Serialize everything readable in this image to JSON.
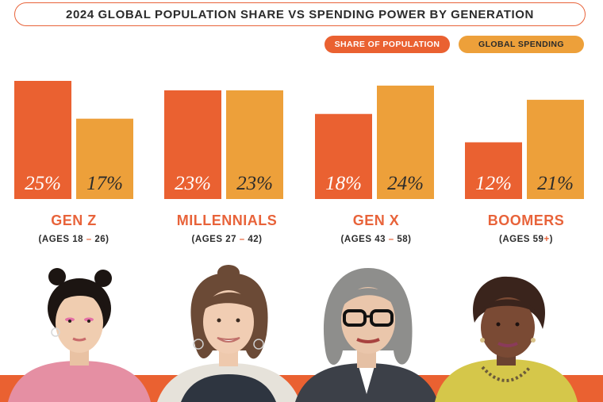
{
  "title": "2024 GLOBAL POPULATION SHARE VS SPENDING POWER BY GENERATION",
  "legend": {
    "population_label": "SHARE OF POPULATION",
    "spending_label": "GLOBAL SPENDING"
  },
  "colors": {
    "population": "#ea6131",
    "spending": "#eda03a",
    "accent": "#e8633a",
    "text": "#2b2b2b"
  },
  "generations": [
    {
      "name": "GEN Z",
      "ages": "(AGES 18 – 26)",
      "portrait_icon": "gen-z-portrait"
    },
    {
      "name": "MILLENNIALS",
      "ages": "(AGES 27 – 42)",
      "portrait_icon": "millennial-portrait"
    },
    {
      "name": "GEN X",
      "ages": "(AGES 43 – 58)",
      "portrait_icon": "gen-x-portrait"
    },
    {
      "name": "BOOMERS",
      "ages": "(AGES 59+)",
      "portrait_icon": "boomer-portrait"
    }
  ],
  "chart_data": {
    "type": "bar",
    "title": "2024 GLOBAL POPULATION SHARE VS SPENDING POWER BY GENERATION",
    "categories": [
      "GEN Z",
      "MILLENNIALS",
      "GEN X",
      "BOOMERS"
    ],
    "series": [
      {
        "name": "SHARE OF POPULATION",
        "values": [
          25,
          23,
          18,
          12
        ],
        "labels": [
          "25%",
          "23%",
          "18%",
          "12%"
        ],
        "color": "#ea6131"
      },
      {
        "name": "GLOBAL SPENDING",
        "values": [
          17,
          23,
          24,
          21
        ],
        "labels": [
          "17%",
          "23%",
          "24%",
          "21%"
        ],
        "color": "#eda03a"
      }
    ],
    "unit": "%",
    "ylim": [
      0,
      25
    ],
    "grid": false,
    "legend_position": "top-right",
    "xlabel": "",
    "ylabel": ""
  }
}
